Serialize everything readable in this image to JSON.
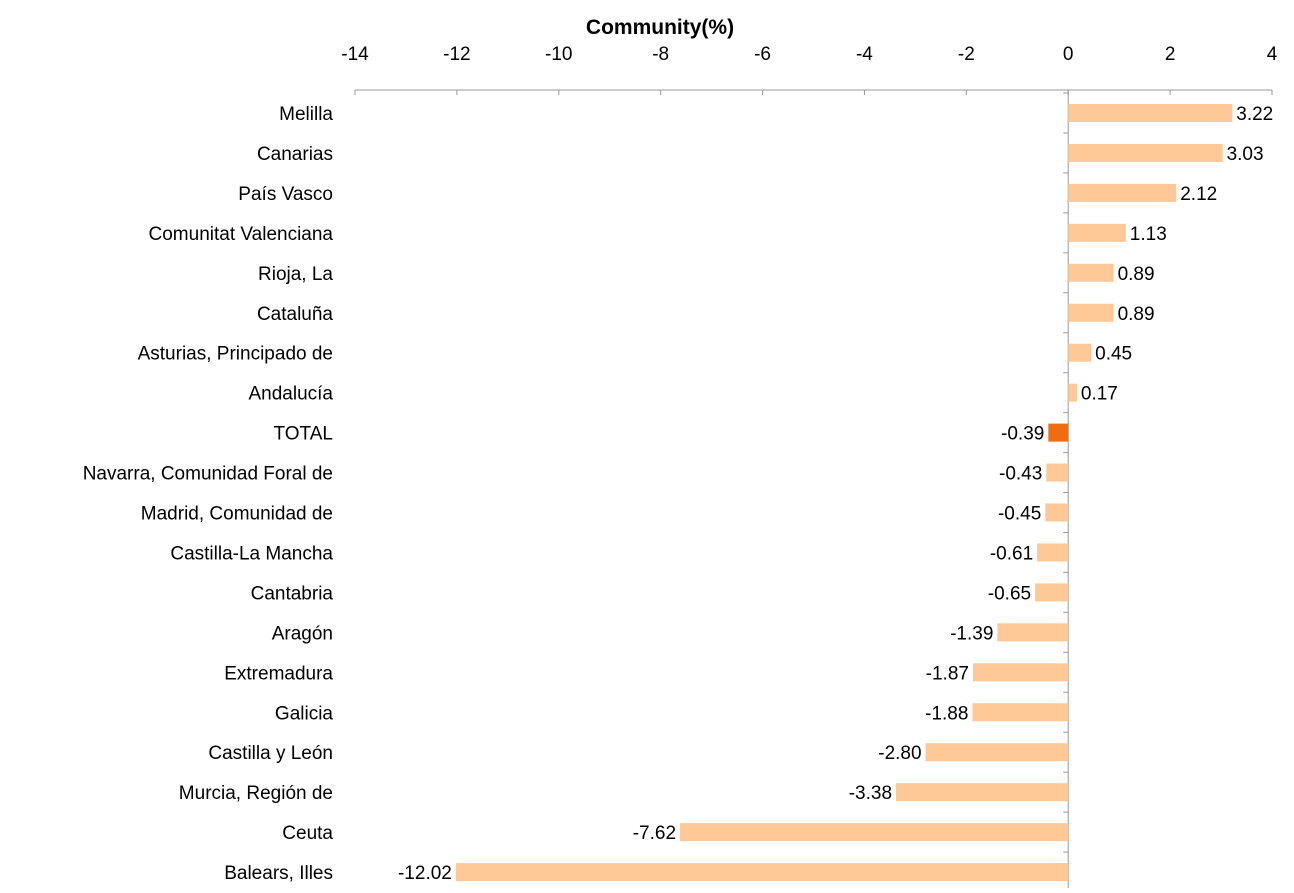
{
  "chart_data": {
    "type": "bar",
    "orientation": "horizontal",
    "title": "Community(%)",
    "xlabel": "",
    "ylabel": "",
    "xlim": [
      -14,
      4
    ],
    "xticks": [
      -14,
      -12,
      -10,
      -8,
      -6,
      -4,
      -2,
      0,
      2,
      4
    ],
    "xtick_labels": [
      "-14",
      "-12",
      "-10",
      "-8",
      "-6",
      "-4",
      "-2",
      "0",
      "2",
      "4"
    ],
    "axis_position": "top",
    "grid": false,
    "legend": "none",
    "value_label_decimals": 2,
    "categories": [
      "Melilla",
      "Canarias",
      "País Vasco",
      "Comunitat Valenciana",
      "Rioja, La",
      "Cataluña",
      "Asturias, Principado de",
      "Andalucía",
      "TOTAL",
      "Navarra, Comunidad Foral de",
      "Madrid, Comunidad de",
      "Castilla-La Mancha",
      "Cantabria",
      "Aragón",
      "Extremadura",
      "Galicia",
      "Castilla y León",
      "Murcia, Región de",
      "Ceuta",
      "Balears, Illes"
    ],
    "values": [
      3.22,
      3.03,
      2.12,
      1.13,
      0.89,
      0.89,
      0.45,
      0.17,
      -0.39,
      -0.43,
      -0.45,
      -0.61,
      -0.65,
      -1.39,
      -1.87,
      -1.88,
      -2.8,
      -3.38,
      -7.62,
      -12.02
    ],
    "value_labels": [
      "3.22",
      "3.03",
      "2.12",
      "1.13",
      "0.89",
      "0.89",
      "0.45",
      "0.17",
      "-0.39",
      "-0.43",
      "-0.45",
      "-0.61",
      "-0.65",
      "-1.39",
      "-1.87",
      "-1.88",
      "-2.80",
      "-3.38",
      "-7.62",
      "-12.02"
    ],
    "colors": {
      "bar": "#FFC896",
      "highlight": "#F26B0F",
      "axis": "#999999",
      "text": "#000000"
    },
    "highlight_category": "TOTAL"
  }
}
